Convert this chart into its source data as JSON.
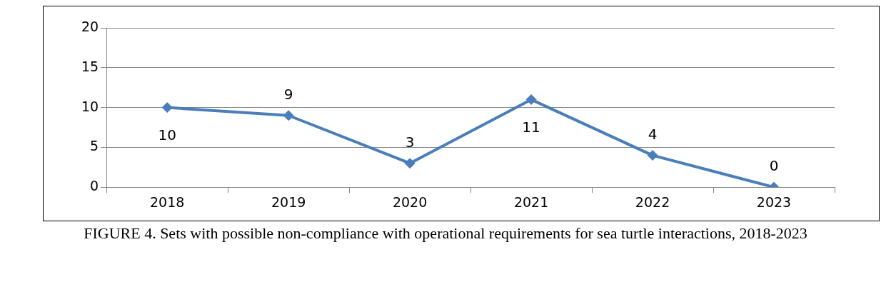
{
  "chart_data": {
    "type": "line",
    "title": "FIGURE 4. Sets with possible non-compliance with operational requirements for sea turtle interactions, 2018-2023",
    "categories": [
      "2018",
      "2019",
      "2020",
      "2021",
      "2022",
      "2023"
    ],
    "series": [
      {
        "color": "#4a7ebb",
        "values": [
          10,
          9,
          3,
          11,
          4,
          0
        ]
      }
    ],
    "ylim": [
      0,
      20
    ],
    "yticks": [
      0,
      5,
      10,
      15,
      20
    ],
    "grid": "y",
    "legend": false,
    "marker": "diamond",
    "line_style": "solid",
    "data_labels": true
  }
}
